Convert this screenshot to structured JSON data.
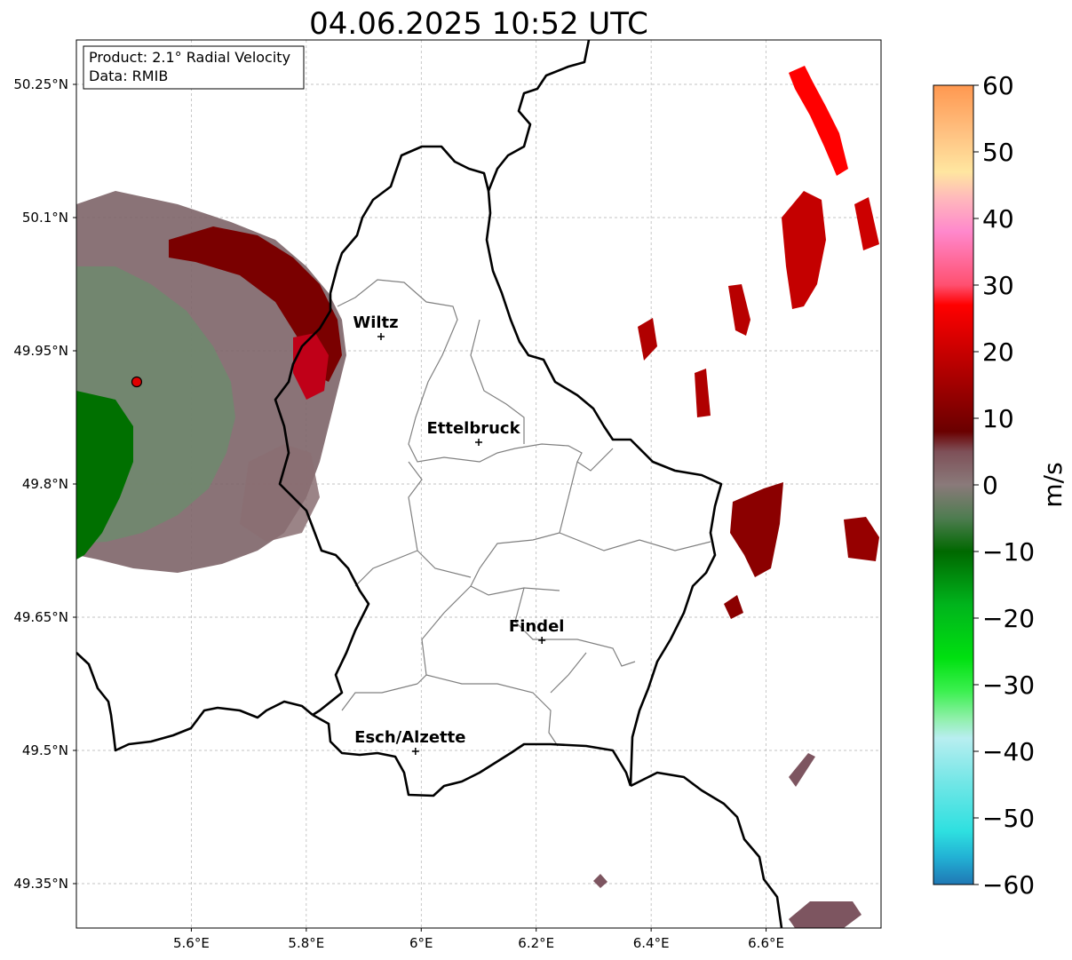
{
  "title": "04.06.2025 10:52 UTC",
  "info_box": {
    "product": "Product: 2.1° Radial Velocity",
    "data": "Data: RMIB"
  },
  "axes": {
    "x_ticks": [
      {
        "value": 5.6,
        "label": "5.6°E"
      },
      {
        "value": 5.8,
        "label": "5.8°E"
      },
      {
        "value": 6.0,
        "label": "6°E"
      },
      {
        "value": 6.2,
        "label": "6.2°E"
      },
      {
        "value": 6.4,
        "label": "6.4°E"
      },
      {
        "value": 6.6,
        "label": "6.6°E"
      }
    ],
    "y_ticks": [
      {
        "value": 50.25,
        "label": "50.25°N"
      },
      {
        "value": 50.1,
        "label": "50.1°N"
      },
      {
        "value": 49.95,
        "label": "49.95°N"
      },
      {
        "value": 49.8,
        "label": "49.8°N"
      },
      {
        "value": 49.65,
        "label": "49.65°N"
      },
      {
        "value": 49.5,
        "label": "49.5°N"
      },
      {
        "value": 49.35,
        "label": "49.35°N"
      }
    ],
    "lon_range": [
      5.4,
      6.8
    ],
    "lat_range": [
      49.3,
      50.3
    ],
    "grid": true
  },
  "cities": [
    {
      "name": "Wiltz",
      "lon": 5.93,
      "lat": 49.966
    },
    {
      "name": "Ettelbruck",
      "lon": 6.1,
      "lat": 49.847
    },
    {
      "name": "Findel",
      "lon": 6.21,
      "lat": 49.624
    },
    {
      "name": "Esch/Alzette",
      "lon": 5.99,
      "lat": 49.499
    }
  ],
  "radar_site": {
    "lon": 5.505,
    "lat": 49.915,
    "color": "#e00000"
  },
  "colorbar": {
    "label": "m/s",
    "min": -60,
    "max": 60,
    "ticks": [
      {
        "value": 60,
        "label": "60"
      },
      {
        "value": 50,
        "label": "50"
      },
      {
        "value": 40,
        "label": "40"
      },
      {
        "value": 30,
        "label": "30"
      },
      {
        "value": 20,
        "label": "20"
      },
      {
        "value": 10,
        "label": "10"
      },
      {
        "value": 0,
        "label": "0"
      },
      {
        "value": -10,
        "label": "−10"
      },
      {
        "value": -20,
        "label": "−20"
      },
      {
        "value": -30,
        "label": "−30"
      },
      {
        "value": -40,
        "label": "−40"
      },
      {
        "value": -50,
        "label": "−50"
      },
      {
        "value": -60,
        "label": "−60"
      }
    ],
    "stops": [
      {
        "value": -60,
        "color": "#1f77b4"
      },
      {
        "value": -56,
        "color": "#22b0d4"
      },
      {
        "value": -52,
        "color": "#2ee0e0"
      },
      {
        "value": -45,
        "color": "#6fe6e6"
      },
      {
        "value": -38,
        "color": "#b8eef0"
      },
      {
        "value": -35,
        "color": "#8ef0a8"
      },
      {
        "value": -31,
        "color": "#3cf050"
      },
      {
        "value": -26,
        "color": "#00e010"
      },
      {
        "value": -18,
        "color": "#00b41c"
      },
      {
        "value": -10,
        "color": "#006800"
      },
      {
        "value": -5,
        "color": "#4e7c50"
      },
      {
        "value": 0,
        "color": "#8a7a7a"
      },
      {
        "value": 5,
        "color": "#7e5058"
      },
      {
        "value": 8,
        "color": "#6a0000"
      },
      {
        "value": 20,
        "color": "#c80000"
      },
      {
        "value": 27,
        "color": "#ff0000"
      },
      {
        "value": 30,
        "color": "#ff5070"
      },
      {
        "value": 38,
        "color": "#ff88cc"
      },
      {
        "value": 43,
        "color": "#ffb8bc"
      },
      {
        "value": 47,
        "color": "#ffe6a0"
      },
      {
        "value": 53,
        "color": "#ffc080"
      },
      {
        "value": 60,
        "color": "#ff9850"
      }
    ]
  },
  "colors": {
    "border_country": "#000000",
    "border_canton": "#808080",
    "velocity_dark_red": "#8b0000",
    "velocity_red": "#cc0000",
    "velocity_muted": "#7d6468",
    "velocity_green": "#007000",
    "velocity_gray_green": "#6d8a6d"
  }
}
